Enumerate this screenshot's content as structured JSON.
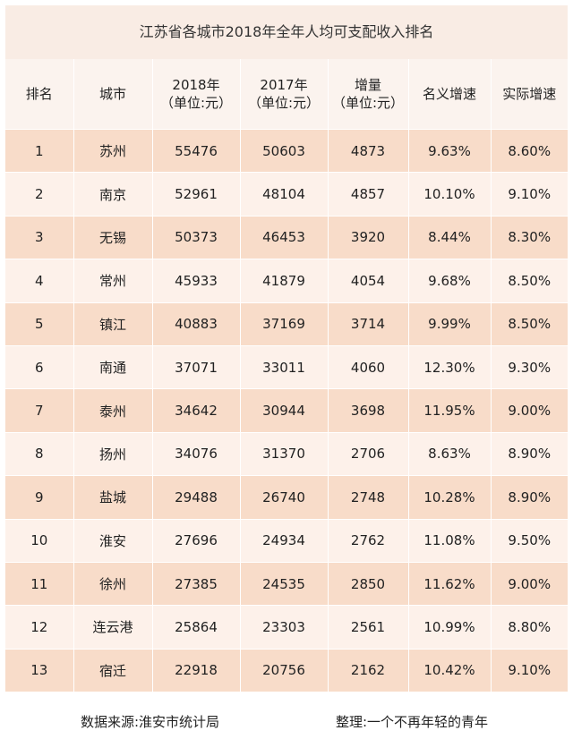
{
  "title": "江苏省各城市2018年全年人均可支配收入排名",
  "headers": {
    "rank": "排名",
    "city": "城市",
    "y2018": [
      "2018年",
      "（单位:元）"
    ],
    "y2017": [
      "2017年",
      "（单位:元）"
    ],
    "increase": [
      "增量",
      "（单位:元）"
    ],
    "nominal": "名义增速",
    "real": "实际增速"
  },
  "rows": [
    {
      "rank": "1",
      "city": "苏州",
      "y2018": "55476",
      "y2017": "50603",
      "increase": "4873",
      "nominal": "9.63%",
      "real": "8.60%"
    },
    {
      "rank": "2",
      "city": "南京",
      "y2018": "52961",
      "y2017": "48104",
      "increase": "4857",
      "nominal": "10.10%",
      "real": "9.10%"
    },
    {
      "rank": "3",
      "city": "无锡",
      "y2018": "50373",
      "y2017": "46453",
      "increase": "3920",
      "nominal": "8.44%",
      "real": "8.30%"
    },
    {
      "rank": "4",
      "city": "常州",
      "y2018": "45933",
      "y2017": "41879",
      "increase": "4054",
      "nominal": "9.68%",
      "real": "8.50%"
    },
    {
      "rank": "5",
      "city": "镇江",
      "y2018": "40883",
      "y2017": "37169",
      "increase": "3714",
      "nominal": "9.99%",
      "real": "8.50%"
    },
    {
      "rank": "6",
      "city": "南通",
      "y2018": "37071",
      "y2017": "33011",
      "increase": "4060",
      "nominal": "12.30%",
      "real": "9.30%"
    },
    {
      "rank": "7",
      "city": "泰州",
      "y2018": "34642",
      "y2017": "30944",
      "increase": "3698",
      "nominal": "11.95%",
      "real": "9.00%"
    },
    {
      "rank": "8",
      "city": "扬州",
      "y2018": "34076",
      "y2017": "31370",
      "increase": "2706",
      "nominal": "8.63%",
      "real": "8.90%"
    },
    {
      "rank": "9",
      "city": "盐城",
      "y2018": "29488",
      "y2017": "26740",
      "increase": "2748",
      "nominal": "10.28%",
      "real": "8.90%"
    },
    {
      "rank": "10",
      "city": "淮安",
      "y2018": "27696",
      "y2017": "24934",
      "increase": "2762",
      "nominal": "11.08%",
      "real": "9.50%"
    },
    {
      "rank": "11",
      "city": "徐州",
      "y2018": "27385",
      "y2017": "24535",
      "increase": "2850",
      "nominal": "11.62%",
      "real": "9.00%"
    },
    {
      "rank": "12",
      "city": "连云港",
      "y2018": "25864",
      "y2017": "23303",
      "increase": "2561",
      "nominal": "10.99%",
      "real": "8.80%"
    },
    {
      "rank": "13",
      "city": "宿迁",
      "y2018": "22918",
      "y2017": "20756",
      "increase": "2162",
      "nominal": "10.42%",
      "real": "9.10%"
    }
  ],
  "footer": {
    "source": "数据来源:淮安市统计局",
    "organizer": "整理:一个不再年轻的青年"
  }
}
